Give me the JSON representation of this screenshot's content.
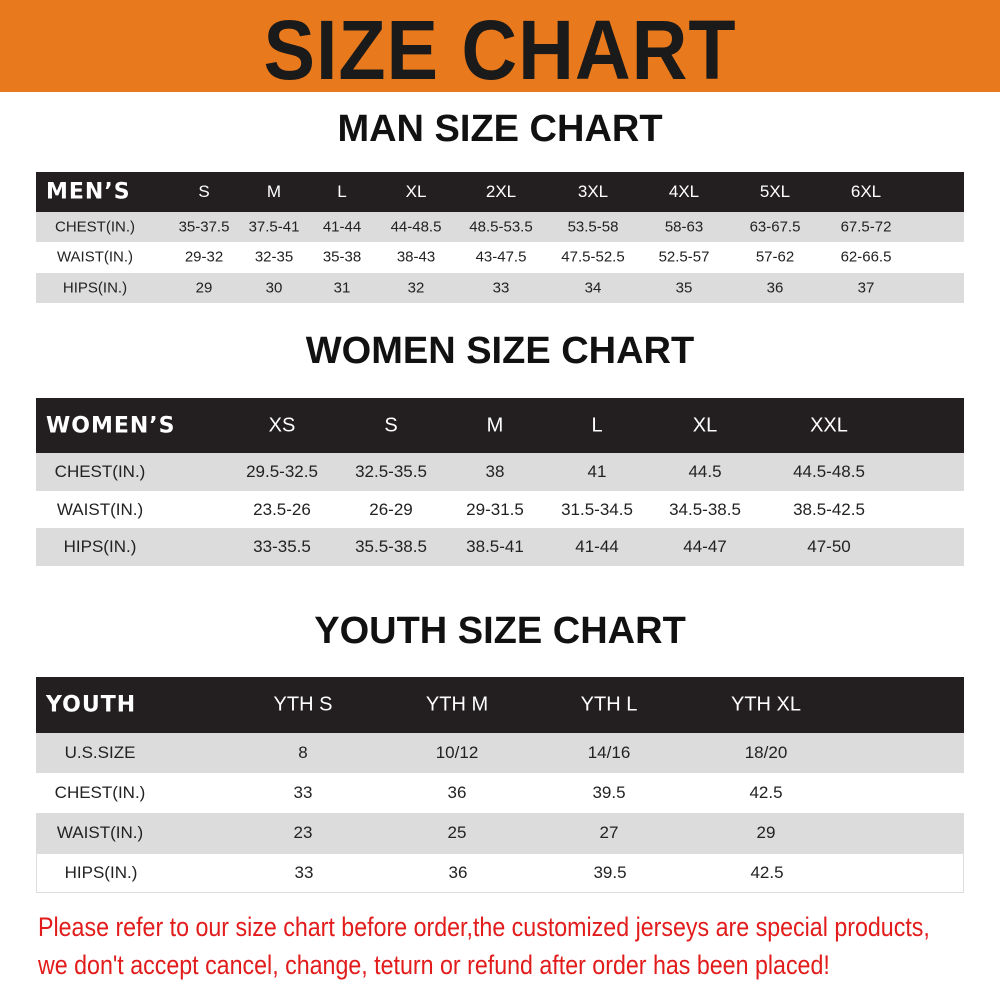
{
  "title": "SIZE CHART",
  "colors": {
    "banner": "#e8791c",
    "header_row": "#231f20",
    "stripe": "#dcdcdc",
    "note": "#e21b1b"
  },
  "men": {
    "title": "MAN SIZE CHART",
    "corner": "MEN’S",
    "sizes": [
      "S",
      "M",
      "L",
      "XL",
      "2XL",
      "3XL",
      "4XL",
      "5XL",
      "6XL"
    ],
    "rows": [
      {
        "label": "CHEST(IN.)",
        "values": [
          "35-37.5",
          "37.5-41",
          "41-44",
          "44-48.5",
          "48.5-53.5",
          "53.5-58",
          "58-63",
          "63-67.5",
          "67.5-72"
        ]
      },
      {
        "label": "WAIST(IN.)",
        "values": [
          "29-32",
          "32-35",
          "35-38",
          "38-43",
          "43-47.5",
          "47.5-52.5",
          "52.5-57",
          "57-62",
          "62-66.5"
        ]
      },
      {
        "label": "HIPS(IN.)",
        "values": [
          "29",
          "30",
          "31",
          "32",
          "33",
          "34",
          "35",
          "36",
          "37"
        ]
      }
    ]
  },
  "women": {
    "title": "WOMEN SIZE CHART",
    "corner": "WOMEN’S",
    "sizes": [
      "XS",
      "S",
      "M",
      "L",
      "XL",
      "XXL"
    ],
    "rows": [
      {
        "label": "CHEST(IN.)",
        "values": [
          "29.5-32.5",
          "32.5-35.5",
          "38",
          "41",
          "44.5",
          "44.5-48.5"
        ]
      },
      {
        "label": "WAIST(IN.)",
        "values": [
          "23.5-26",
          "26-29",
          "29-31.5",
          "31.5-34.5",
          "34.5-38.5",
          "38.5-42.5"
        ]
      },
      {
        "label": "HIPS(IN.)",
        "values": [
          "33-35.5",
          "35.5-38.5",
          "38.5-41",
          "41-44",
          "44-47",
          "47-50"
        ]
      }
    ]
  },
  "youth": {
    "title": "YOUTH SIZE CHART",
    "corner": "YOUTH",
    "sizes": [
      "YTH S",
      "YTH M",
      "YTH L",
      "YTH XL"
    ],
    "rows": [
      {
        "label": "U.S.SIZE",
        "values": [
          "8",
          "10/12",
          "14/16",
          "18/20"
        ]
      },
      {
        "label": "CHEST(IN.)",
        "values": [
          "33",
          "36",
          "39.5",
          "42.5"
        ]
      },
      {
        "label": "WAIST(IN.)",
        "values": [
          "23",
          "25",
          "27",
          "29"
        ]
      },
      {
        "label": "HIPS(IN.)",
        "values": [
          "33",
          "36",
          "39.5",
          "42.5"
        ]
      }
    ]
  },
  "notice": {
    "line1": "Please refer to our size chart before order,the customized jerseys are special products,",
    "line2": "we don't accept cancel, change, teturn or refund after order has been placed!"
  }
}
